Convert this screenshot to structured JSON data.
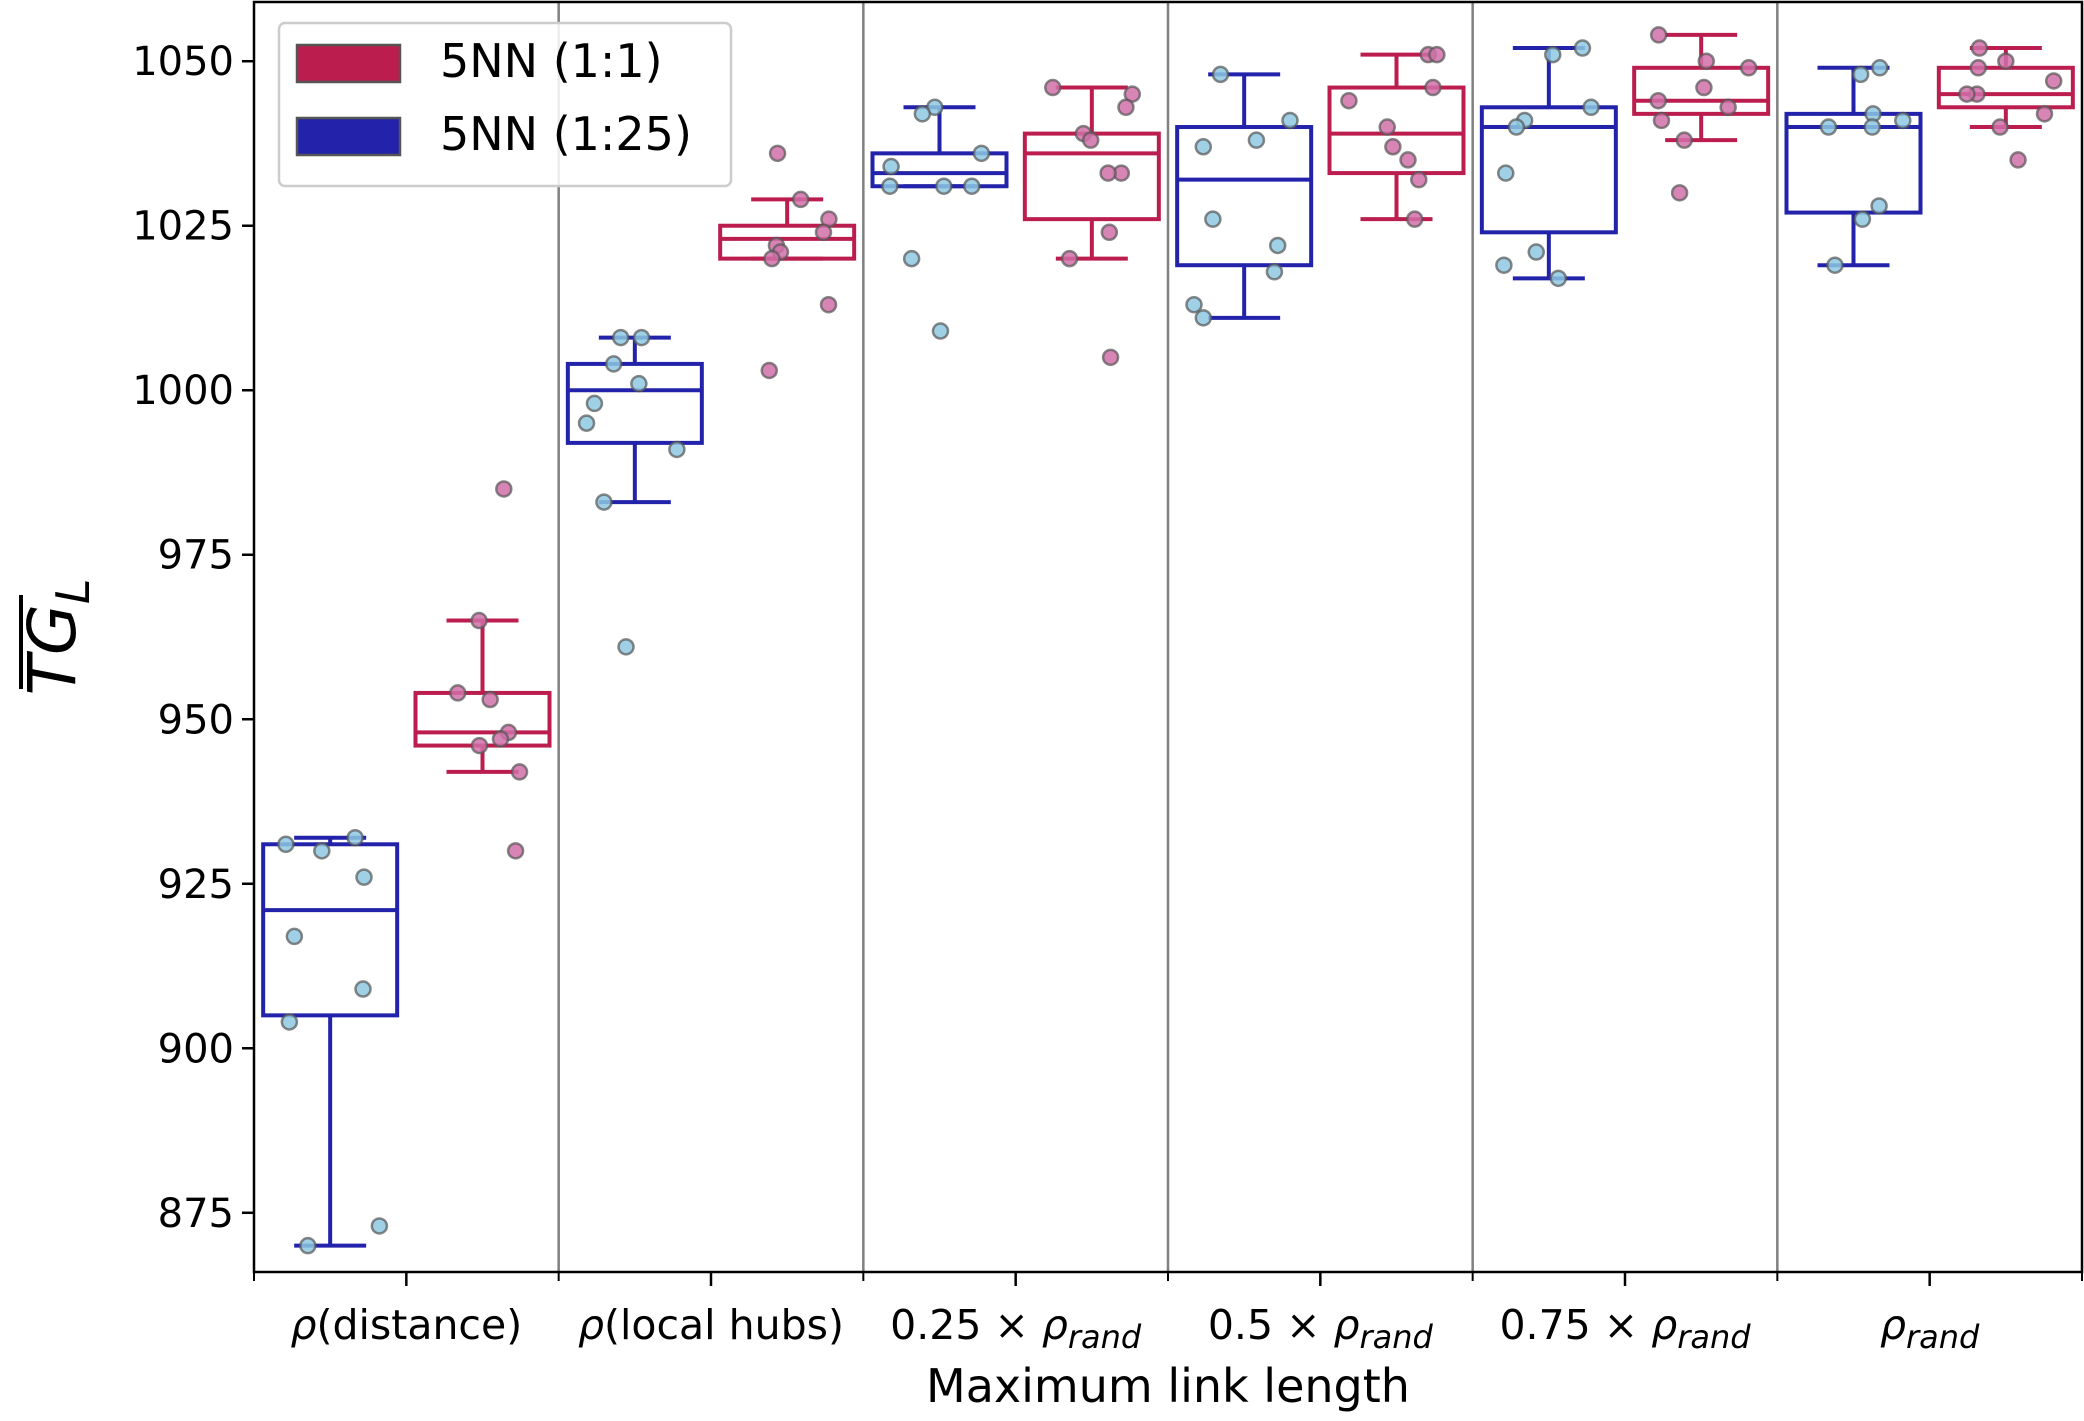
{
  "chart_data": {
    "type": "box",
    "title": "",
    "xlabel": "Maximum link length",
    "ylabel": "TG_L",
    "ylabel_display": {
      "base": "TG",
      "sub": "L"
    },
    "ylim": [
      866,
      1059
    ],
    "yticks": [
      875,
      900,
      925,
      950,
      975,
      1000,
      1025,
      1050
    ],
    "grid": false,
    "legend_position": "upper left",
    "categories": [
      {
        "label": "ρ(distance)",
        "parts": [
          {
            "t": "ρ",
            "i": true
          },
          {
            "t": "(distance)"
          }
        ]
      },
      {
        "label": "ρ(local hubs)",
        "parts": [
          {
            "t": "ρ",
            "i": true
          },
          {
            "t": "(local hubs)"
          }
        ]
      },
      {
        "label": "0.25 × ρ_rand",
        "parts": [
          {
            "t": "0.25 × "
          },
          {
            "t": "ρ",
            "i": true
          },
          {
            "t": "rand",
            "i": true,
            "sub": true
          }
        ]
      },
      {
        "label": "0.5 × ρ_rand",
        "parts": [
          {
            "t": "0.5 × "
          },
          {
            "t": "ρ",
            "i": true
          },
          {
            "t": "rand",
            "i": true,
            "sub": true
          }
        ]
      },
      {
        "label": "0.75 × ρ_rand",
        "parts": [
          {
            "t": "0.75 × "
          },
          {
            "t": "ρ",
            "i": true
          },
          {
            "t": "rand",
            "i": true,
            "sub": true
          }
        ]
      },
      {
        "label": "ρ_rand",
        "parts": [
          {
            "t": "ρ",
            "i": true
          },
          {
            "t": "rand",
            "i": true,
            "sub": true
          }
        ]
      }
    ],
    "series": [
      {
        "name": "5NN (1:25)",
        "box_color": "#2222aa",
        "point_color": "#8ec8e0",
        "boxes": [
          {
            "whislo": 870,
            "q1": 905,
            "med": 921,
            "q3": 931,
            "whishi": 932
          },
          {
            "whislo": 983,
            "q1": 992,
            "med": 1000,
            "q3": 1004,
            "whishi": 1008
          },
          {
            "whislo": 1031,
            "q1": 1031,
            "med": 1033,
            "q3": 1036,
            "whishi": 1043
          },
          {
            "whislo": 1011,
            "q1": 1019,
            "med": 1032,
            "q3": 1040,
            "whishi": 1048
          },
          {
            "whislo": 1017,
            "q1": 1024,
            "med": 1040,
            "q3": 1043,
            "whishi": 1052
          },
          {
            "whislo": 1019,
            "q1": 1027,
            "med": 1040,
            "q3": 1042,
            "whishi": 1049
          }
        ],
        "points": [
          [
            932,
            931,
            930,
            926,
            917,
            909,
            904,
            873,
            870
          ],
          [
            1008,
            1008,
            1004,
            1001,
            998,
            995,
            991,
            983,
            961
          ],
          [
            1043,
            1042,
            1036,
            1034,
            1031,
            1031,
            1031,
            1020,
            1009
          ],
          [
            1048,
            1041,
            1038,
            1037,
            1026,
            1022,
            1018,
            1013,
            1011
          ],
          [
            1052,
            1051,
            1043,
            1041,
            1040,
            1033,
            1021,
            1019,
            1017
          ],
          [
            1049,
            1048,
            1042,
            1041,
            1040,
            1040,
            1028,
            1026,
            1019
          ]
        ]
      },
      {
        "name": "5NN (1:1)",
        "box_color": "#bb1e4e",
        "point_color": "#d070a8",
        "boxes": [
          {
            "whislo": 942,
            "q1": 946,
            "med": 948,
            "q3": 954,
            "whishi": 965
          },
          {
            "whislo": 1020,
            "q1": 1020,
            "med": 1023,
            "q3": 1025,
            "whishi": 1029
          },
          {
            "whislo": 1020,
            "q1": 1026,
            "med": 1036,
            "q3": 1039,
            "whishi": 1046
          },
          {
            "whislo": 1026,
            "q1": 1033,
            "med": 1039,
            "q3": 1046,
            "whishi": 1051
          },
          {
            "whislo": 1038,
            "q1": 1042,
            "med": 1044,
            "q3": 1049,
            "whishi": 1054
          },
          {
            "whislo": 1040,
            "q1": 1043,
            "med": 1045,
            "q3": 1049,
            "whishi": 1052
          }
        ],
        "points": [
          [
            985,
            965,
            954,
            953,
            948,
            947,
            946,
            942,
            930
          ],
          [
            1036,
            1029,
            1026,
            1024,
            1022,
            1021,
            1020,
            1013,
            1003
          ],
          [
            1046,
            1045,
            1043,
            1039,
            1038,
            1033,
            1033,
            1024,
            1020,
            1005
          ],
          [
            1051,
            1051,
            1046,
            1044,
            1040,
            1037,
            1035,
            1032,
            1026
          ],
          [
            1054,
            1050,
            1049,
            1046,
            1044,
            1043,
            1041,
            1038,
            1030
          ],
          [
            1052,
            1050,
            1049,
            1047,
            1045,
            1045,
            1042,
            1040,
            1035
          ]
        ]
      }
    ],
    "legend": [
      {
        "label": "5NN (1:1)",
        "color": "#bb1e4e"
      },
      {
        "label": "5NN (1:25)",
        "color": "#2222aa"
      }
    ]
  }
}
